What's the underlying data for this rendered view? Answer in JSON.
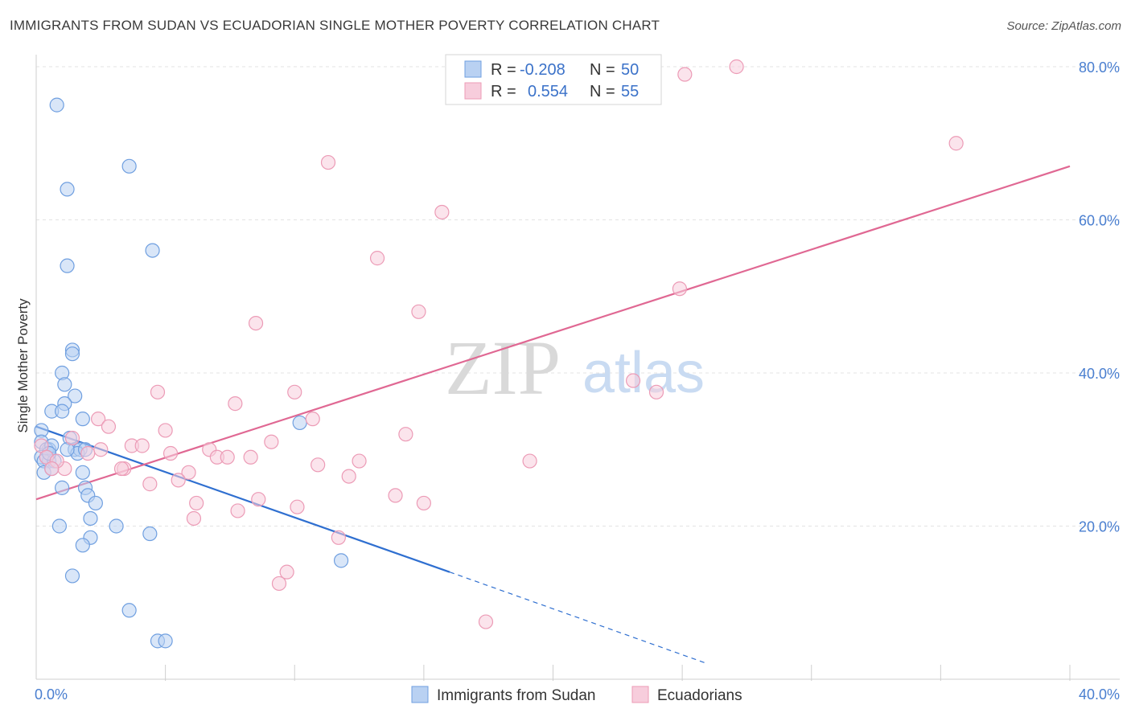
{
  "header": {
    "title": "IMMIGRANTS FROM SUDAN VS ECUADORIAN SINGLE MOTHER POVERTY CORRELATION CHART",
    "source": "Source: ZipAtlas.com"
  },
  "watermark": {
    "zip": "ZIP",
    "atlas": "atlas"
  },
  "legend": {
    "rows": [
      {
        "r_label": "R =",
        "r_value": "-0.208",
        "n_label": "N =",
        "n_value": "50"
      },
      {
        "r_label": "R =",
        "r_value": "0.554",
        "n_label": "N =",
        "n_value": "55"
      }
    ]
  },
  "bottom_legend": {
    "items": [
      {
        "label": "Immigrants from Sudan"
      },
      {
        "label": "Ecuadorians"
      }
    ]
  },
  "chart_data": {
    "type": "scatter",
    "title": "IMMIGRANTS FROM SUDAN VS ECUADORIAN SINGLE MOTHER POVERTY CORRELATION CHART",
    "xlabel": "",
    "ylabel": "Single Mother Poverty",
    "xlim": [
      0,
      40
    ],
    "ylim": [
      0,
      80
    ],
    "x_tick_labels": [
      {
        "value": 0,
        "label": "0.0%"
      },
      {
        "value": 40,
        "label": "40.0%"
      }
    ],
    "y_tick_labels": [
      {
        "value": 20,
        "label": "20.0%"
      },
      {
        "value": 40,
        "label": "40.0%"
      },
      {
        "value": 60,
        "label": "60.0%"
      },
      {
        "value": 80,
        "label": "80.0%"
      }
    ],
    "grid": true,
    "legend_position": "top-center",
    "series": [
      {
        "name": "Immigrants from Sudan",
        "color": "#6f9fe0",
        "fill": "#b9d1f2",
        "line_color": "#2f6fd0",
        "trend": {
          "x0": 0,
          "y0": 33.0,
          "x1": 16,
          "y1": 14.0,
          "dash_x_end": 26,
          "dash_y_end": 2.0
        },
        "points": [
          [
            0.8,
            75
          ],
          [
            1.2,
            64
          ],
          [
            3.6,
            67
          ],
          [
            4.5,
            56
          ],
          [
            1.2,
            54
          ],
          [
            1.4,
            43
          ],
          [
            1.4,
            42.5
          ],
          [
            1.0,
            40
          ],
          [
            1.1,
            38.5
          ],
          [
            1.5,
            37
          ],
          [
            1.1,
            36
          ],
          [
            0.6,
            35
          ],
          [
            1.0,
            35
          ],
          [
            1.8,
            34
          ],
          [
            0.2,
            32.5
          ],
          [
            0.2,
            31
          ],
          [
            1.3,
            31.5
          ],
          [
            1.5,
            30
          ],
          [
            0.5,
            30
          ],
          [
            0.4,
            30
          ],
          [
            1.7,
            30
          ],
          [
            0.6,
            30.5
          ],
          [
            0.2,
            29
          ],
          [
            0.4,
            29
          ],
          [
            0.5,
            28.5
          ],
          [
            0.3,
            28.5
          ],
          [
            0.7,
            28.5
          ],
          [
            1.6,
            29.5
          ],
          [
            0.3,
            27
          ],
          [
            0.6,
            27.5
          ],
          [
            1.8,
            27
          ],
          [
            1.0,
            25
          ],
          [
            1.9,
            25
          ],
          [
            2.0,
            24
          ],
          [
            2.3,
            23
          ],
          [
            2.1,
            21
          ],
          [
            0.9,
            20
          ],
          [
            3.1,
            20
          ],
          [
            4.4,
            19
          ],
          [
            2.1,
            18.5
          ],
          [
            1.8,
            17.5
          ],
          [
            10.2,
            33.5
          ],
          [
            1.4,
            13.5
          ],
          [
            11.8,
            15.5
          ],
          [
            3.6,
            9
          ],
          [
            4.7,
            5
          ],
          [
            5.0,
            5
          ],
          [
            0.5,
            29.5
          ],
          [
            1.9,
            30
          ],
          [
            1.2,
            30
          ]
        ]
      },
      {
        "name": "Ecuadorians",
        "color": "#ec9bb6",
        "fill": "#f7cddc",
        "line_color": "#e06893",
        "trend": {
          "x0": 0,
          "y0": 23.5,
          "x1": 40,
          "y1": 67.0
        },
        "points": [
          [
            27.1,
            80
          ],
          [
            25.1,
            79
          ],
          [
            35.6,
            70
          ],
          [
            11.3,
            67.5
          ],
          [
            15.7,
            61
          ],
          [
            13.2,
            55
          ],
          [
            24.9,
            51
          ],
          [
            14.8,
            48
          ],
          [
            8.5,
            46.5
          ],
          [
            23.1,
            39
          ],
          [
            24.0,
            37.5
          ],
          [
            4.7,
            37.5
          ],
          [
            10.0,
            37.5
          ],
          [
            7.7,
            36
          ],
          [
            2.4,
            34
          ],
          [
            10.7,
            34
          ],
          [
            2.8,
            33
          ],
          [
            5.0,
            32.5
          ],
          [
            14.3,
            32
          ],
          [
            9.1,
            31
          ],
          [
            3.7,
            30.5
          ],
          [
            4.1,
            30.5
          ],
          [
            6.7,
            30
          ],
          [
            2.5,
            30
          ],
          [
            5.2,
            29.5
          ],
          [
            7.0,
            29
          ],
          [
            8.3,
            29
          ],
          [
            7.4,
            29
          ],
          [
            19.1,
            28.5
          ],
          [
            12.5,
            28.5
          ],
          [
            10.9,
            28
          ],
          [
            1.1,
            27.5
          ],
          [
            3.4,
            27.5
          ],
          [
            3.3,
            27.5
          ],
          [
            5.9,
            27
          ],
          [
            5.5,
            26
          ],
          [
            12.1,
            26.5
          ],
          [
            4.4,
            25.5
          ],
          [
            13.9,
            24
          ],
          [
            8.6,
            23.5
          ],
          [
            15.0,
            23
          ],
          [
            6.2,
            23
          ],
          [
            10.1,
            22.5
          ],
          [
            7.8,
            22
          ],
          [
            6.1,
            21
          ],
          [
            11.7,
            18.5
          ],
          [
            9.7,
            14
          ],
          [
            9.4,
            12.5
          ],
          [
            17.4,
            7.5
          ],
          [
            0.2,
            30.5
          ],
          [
            0.4,
            29
          ],
          [
            0.8,
            28.5
          ],
          [
            2.0,
            29.5
          ],
          [
            1.4,
            31.5
          ],
          [
            0.6,
            27.5
          ]
        ]
      }
    ]
  }
}
